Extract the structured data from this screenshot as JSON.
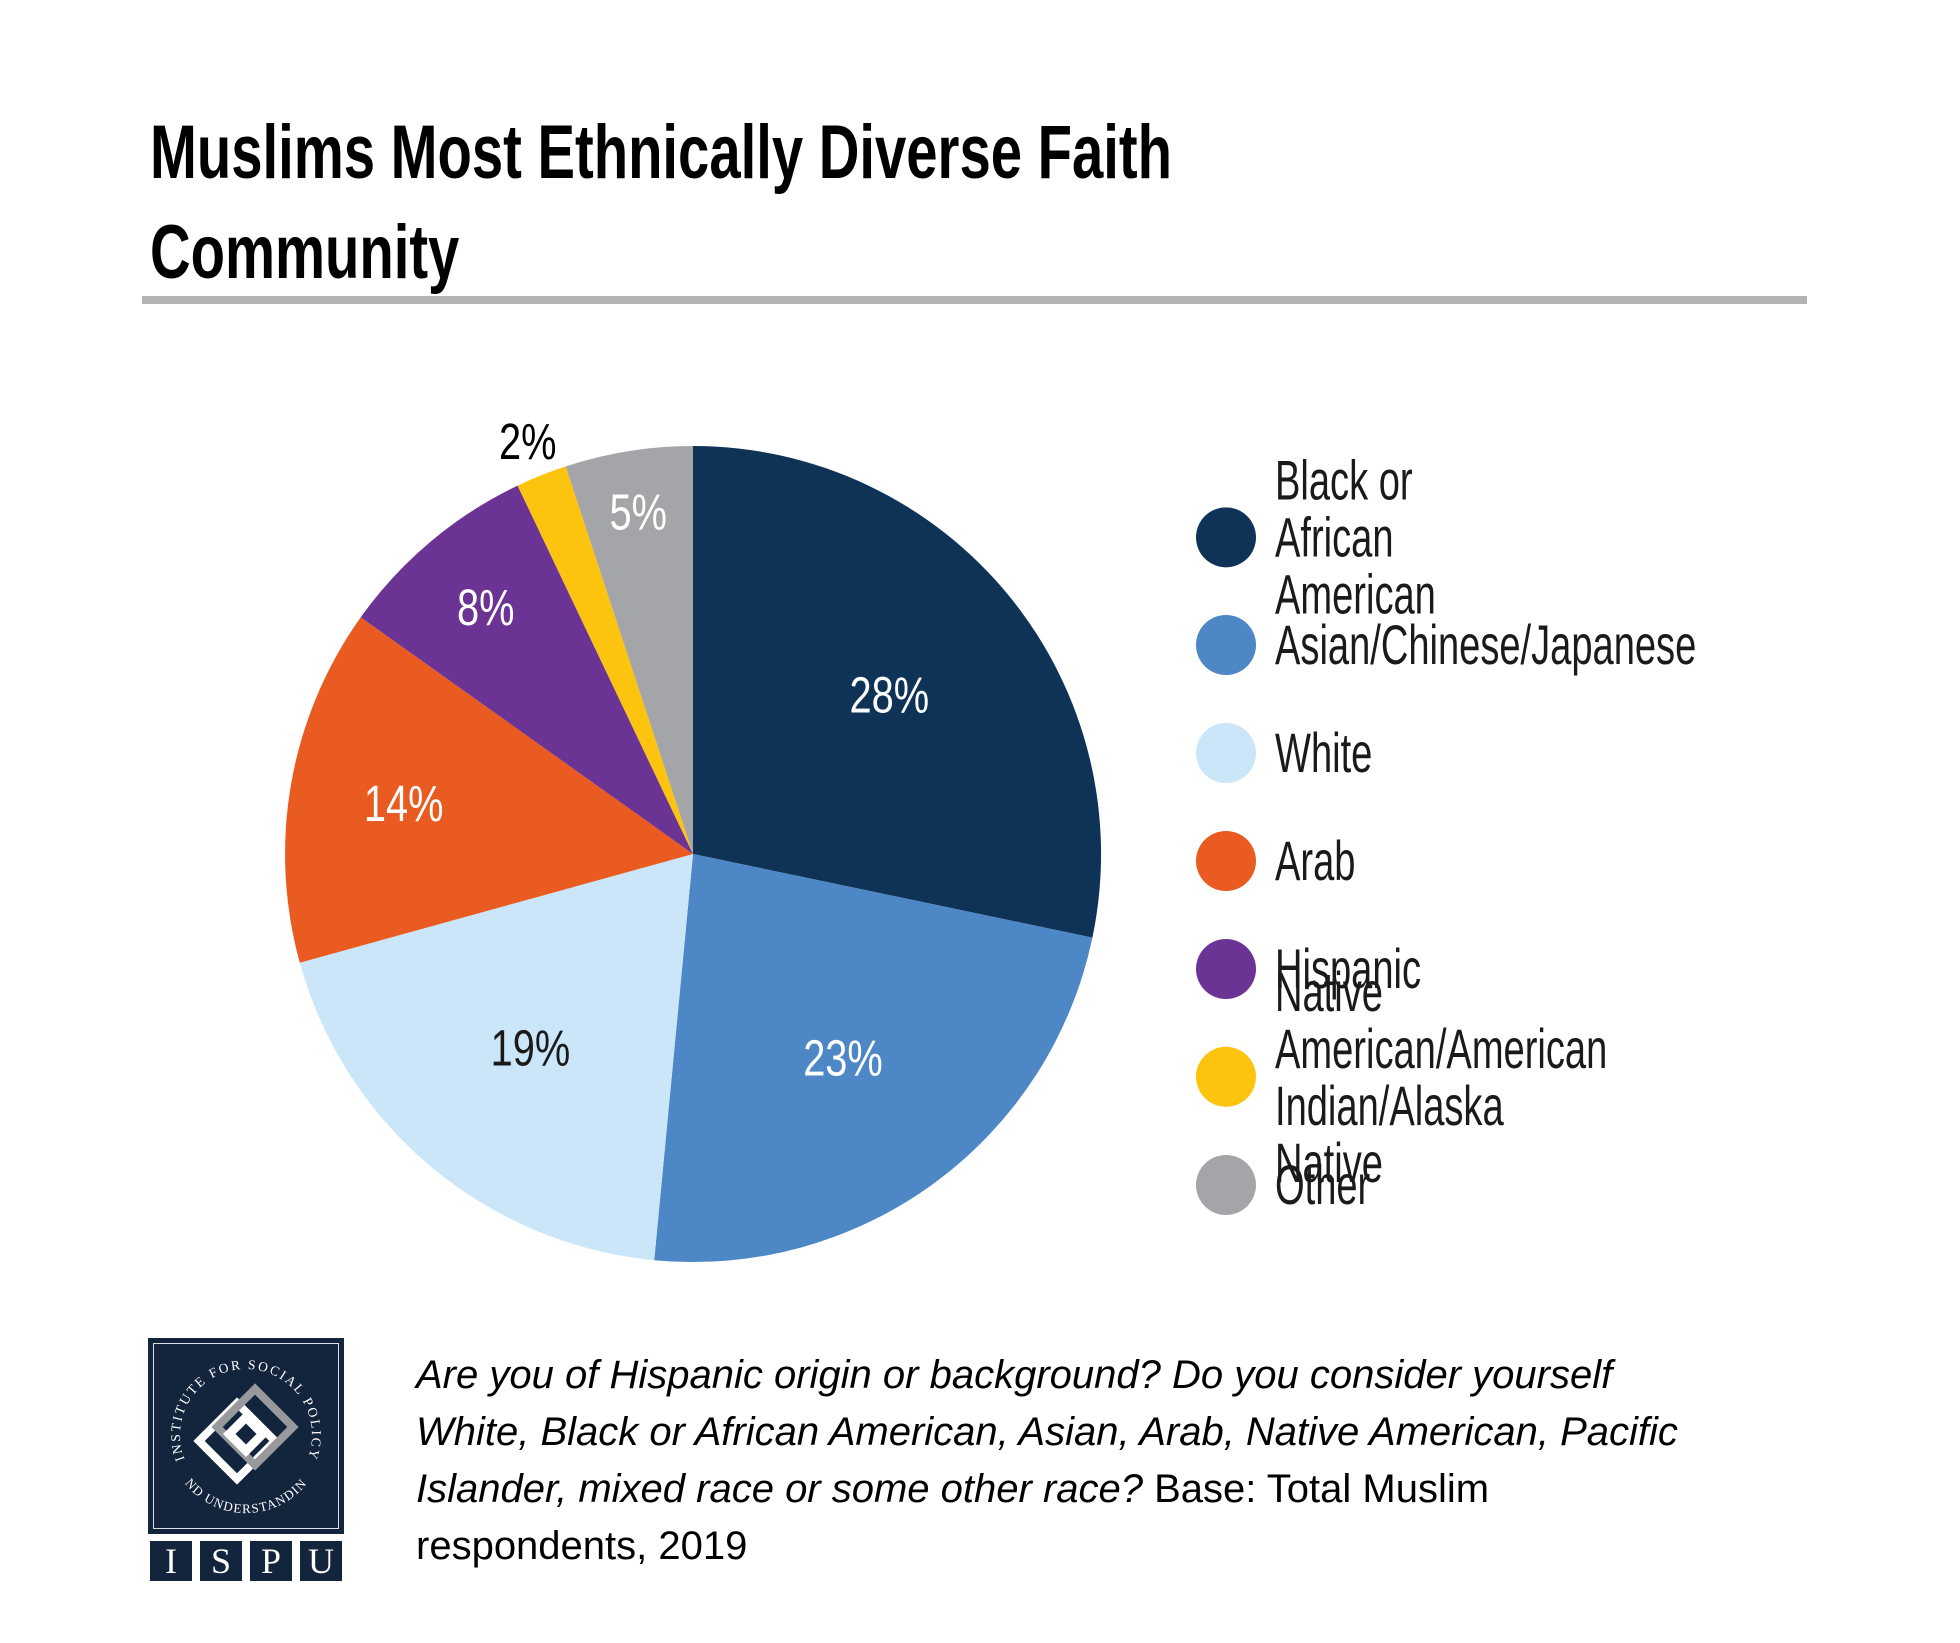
{
  "title": {
    "text": "Muslims Most Ethnically Diverse Faith\nCommunity",
    "color": "#000000"
  },
  "divider_color": "#b3b3b3",
  "chart_data": {
    "type": "pie",
    "title": "Muslims Most Ethnically Diverse Faith Community",
    "start_angle_deg": 0,
    "direction": "clockwise",
    "value_suffix": "%",
    "legend_position": "right",
    "slices": [
      {
        "label": "Black or African American",
        "value": 28,
        "color": "#0F3356",
        "label_color": "#ffffff"
      },
      {
        "label": "Asian/Chinese/Japanese",
        "value": 23,
        "color": "#4E87C6",
        "label_color": "#ffffff"
      },
      {
        "label": "White",
        "value": 19,
        "color": "#CBE6F8",
        "label_color": "#1a1a1a"
      },
      {
        "label": "Arab",
        "value": 14,
        "color": "#EA5B21",
        "label_color": "#ffffff"
      },
      {
        "label": "Hispanic",
        "value": 8,
        "color": "#6B3494",
        "label_color": "#ffffff"
      },
      {
        "label": "Native American/American\nIndian/Alaska Native",
        "value": 2,
        "color": "#FCC40E",
        "label_color": "#000000"
      },
      {
        "label": "Other",
        "value": 5,
        "color": "#A3A5A8",
        "label_color": "#ffffff"
      }
    ]
  },
  "footnote": {
    "lines": [
      {
        "question": "Are you of Hispanic origin or background? Do you consider yourself",
        "base": ""
      },
      {
        "question": "White, Black or African American, Asian, Arab, Native American, Pacific",
        "base": ""
      },
      {
        "question": "Islander, mixed race or some other race?",
        "base": " Base: Total Muslim"
      },
      {
        "question": "",
        "base": "respondents, 2019"
      }
    ]
  },
  "logo": {
    "ring_top": "INSTITUTE FOR SOCIAL POLICY",
    "ring_bottom": "AND UNDERSTANDING",
    "acronym": [
      "I",
      "S",
      "P",
      "U"
    ],
    "navy": "#13243D",
    "gray": "#97999C"
  }
}
